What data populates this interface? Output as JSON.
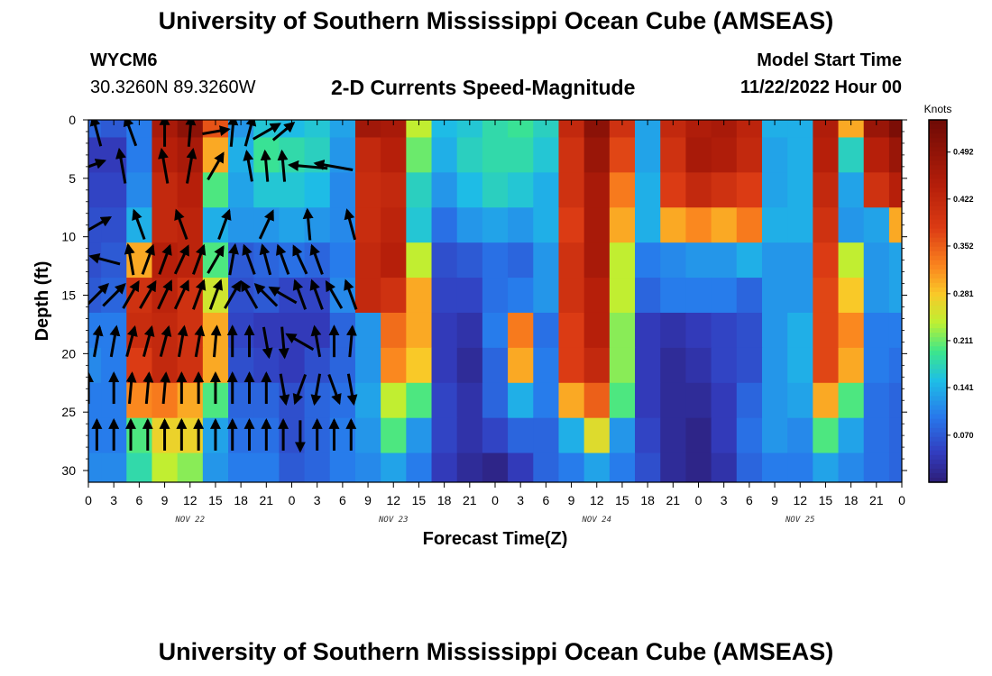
{
  "page": {
    "title": "University of Southern Mississippi Ocean Cube (AMSEAS)",
    "title_repeat": "University of Southern Mississippi Ocean Cube (AMSEAS)",
    "station_id": "WYCM6",
    "station_coords": "30.3260N  89.3260W",
    "plot_title": "2-D Currents Speed-Magnitude",
    "model_start_label": "Model Start Time",
    "model_start_value": "11/22/2022 Hour 00"
  },
  "chart_data": {
    "type": "heatmap",
    "title": "2-D Currents Speed-Magnitude",
    "xlabel": "Forecast Time(Z)",
    "ylabel": "Depth (ft)",
    "x_range_hours": [
      0,
      96
    ],
    "x_tick_labels": [
      "0",
      "3",
      "6",
      "9",
      "12",
      "15",
      "18",
      "21",
      "0",
      "3",
      "6",
      "9",
      "12",
      "15",
      "18",
      "21",
      "0",
      "3",
      "6",
      "9",
      "12",
      "15",
      "18",
      "21",
      "0",
      "3",
      "6",
      "9",
      "12",
      "15",
      "18",
      "21",
      "0"
    ],
    "day_labels": [
      "NOV 22",
      "NOV 23",
      "NOV 24",
      "NOV 25"
    ],
    "y_range_ft": [
      0,
      31
    ],
    "y_ticks": [
      0,
      5,
      10,
      15,
      20,
      25,
      30
    ],
    "y_tick_labels": [
      "0",
      "5",
      "10",
      "15",
      "20",
      "25",
      "30"
    ],
    "colorbar": {
      "label": "Knots",
      "range": [
        0,
        0.54
      ],
      "ticks": [
        0.07,
        0.141,
        0.211,
        0.281,
        0.352,
        0.422,
        0.492
      ],
      "tick_labels": [
        "0.070",
        "0.141",
        "0.211",
        "0.281",
        "0.352",
        "0.422",
        "0.492"
      ]
    },
    "speed_grid": {
      "units": "knots",
      "x_hours": [
        0,
        3,
        6,
        9,
        12,
        15,
        18,
        21,
        24,
        27,
        30,
        33,
        36,
        39,
        42,
        45,
        48,
        51,
        54,
        57,
        60,
        63,
        66,
        69,
        72,
        75,
        78,
        81,
        84,
        87,
        90,
        93,
        96
      ],
      "depths_ft": [
        0,
        3,
        6,
        9,
        12,
        15,
        18,
        21,
        24,
        27,
        30
      ],
      "values": [
        [
          0.08,
          0.07,
          0.1,
          0.46,
          0.5,
          0.36,
          0.12,
          0.16,
          0.15,
          0.16,
          0.13,
          0.47,
          0.46,
          0.24,
          0.15,
          0.16,
          0.18,
          0.19,
          0.17,
          0.42,
          0.5,
          0.4,
          0.13,
          0.42,
          0.45,
          0.46,
          0.43,
          0.14,
          0.14,
          0.45,
          0.3,
          0.48,
          0.52
        ],
        [
          0.04,
          0.04,
          0.1,
          0.44,
          0.46,
          0.3,
          0.14,
          0.19,
          0.18,
          0.17,
          0.12,
          0.42,
          0.44,
          0.21,
          0.14,
          0.17,
          0.18,
          0.18,
          0.16,
          0.4,
          0.48,
          0.37,
          0.13,
          0.4,
          0.46,
          0.45,
          0.42,
          0.13,
          0.14,
          0.44,
          0.17,
          0.44,
          0.48
        ],
        [
          0.05,
          0.05,
          0.11,
          0.42,
          0.44,
          0.2,
          0.13,
          0.16,
          0.16,
          0.15,
          0.11,
          0.41,
          0.42,
          0.17,
          0.12,
          0.15,
          0.17,
          0.16,
          0.14,
          0.4,
          0.46,
          0.33,
          0.14,
          0.38,
          0.42,
          0.4,
          0.38,
          0.13,
          0.14,
          0.42,
          0.13,
          0.4,
          0.44
        ],
        [
          0.06,
          0.06,
          0.14,
          0.42,
          0.43,
          0.14,
          0.12,
          0.12,
          0.13,
          0.12,
          0.11,
          0.41,
          0.43,
          0.16,
          0.09,
          0.12,
          0.13,
          0.12,
          0.14,
          0.38,
          0.46,
          0.3,
          0.14,
          0.3,
          0.32,
          0.3,
          0.33,
          0.14,
          0.14,
          0.4,
          0.12,
          0.13,
          0.3
        ],
        [
          0.06,
          0.07,
          0.3,
          0.44,
          0.43,
          0.2,
          0.07,
          0.08,
          0.09,
          0.08,
          0.1,
          0.42,
          0.44,
          0.24,
          0.06,
          0.07,
          0.09,
          0.08,
          0.12,
          0.4,
          0.46,
          0.24,
          0.1,
          0.11,
          0.12,
          0.12,
          0.14,
          0.12,
          0.12,
          0.38,
          0.24,
          0.12,
          0.13
        ],
        [
          0.07,
          0.08,
          0.4,
          0.43,
          0.4,
          0.25,
          0.06,
          0.07,
          0.05,
          0.05,
          0.11,
          0.42,
          0.4,
          0.3,
          0.05,
          0.05,
          0.09,
          0.1,
          0.12,
          0.4,
          0.44,
          0.24,
          0.08,
          0.1,
          0.1,
          0.1,
          0.08,
          0.12,
          0.12,
          0.37,
          0.28,
          0.12,
          0.13
        ],
        [
          0.1,
          0.1,
          0.41,
          0.42,
          0.4,
          0.3,
          0.05,
          0.04,
          0.04,
          0.04,
          0.08,
          0.12,
          0.34,
          0.3,
          0.04,
          0.03,
          0.1,
          0.33,
          0.09,
          0.38,
          0.44,
          0.22,
          0.04,
          0.03,
          0.04,
          0.05,
          0.06,
          0.12,
          0.14,
          0.37,
          0.32,
          0.1,
          0.1
        ],
        [
          0.11,
          0.1,
          0.38,
          0.42,
          0.4,
          0.3,
          0.06,
          0.05,
          0.04,
          0.06,
          0.08,
          0.12,
          0.32,
          0.28,
          0.04,
          0.02,
          0.08,
          0.3,
          0.1,
          0.38,
          0.42,
          0.22,
          0.04,
          0.02,
          0.03,
          0.05,
          0.06,
          0.12,
          0.14,
          0.37,
          0.3,
          0.1,
          0.09
        ],
        [
          0.1,
          0.1,
          0.32,
          0.33,
          0.3,
          0.2,
          0.08,
          0.08,
          0.06,
          0.08,
          0.09,
          0.13,
          0.24,
          0.2,
          0.05,
          0.03,
          0.08,
          0.14,
          0.1,
          0.3,
          0.35,
          0.2,
          0.04,
          0.02,
          0.02,
          0.04,
          0.08,
          0.12,
          0.13,
          0.3,
          0.2,
          0.09,
          0.08
        ],
        [
          0.1,
          0.1,
          0.2,
          0.27,
          0.27,
          0.13,
          0.09,
          0.09,
          0.06,
          0.08,
          0.1,
          0.12,
          0.2,
          0.12,
          0.05,
          0.03,
          0.05,
          0.08,
          0.08,
          0.14,
          0.26,
          0.12,
          0.05,
          0.02,
          0.01,
          0.04,
          0.09,
          0.12,
          0.11,
          0.2,
          0.13,
          0.09,
          0.08
        ],
        [
          0.11,
          0.11,
          0.18,
          0.24,
          0.22,
          0.12,
          0.1,
          0.1,
          0.07,
          0.08,
          0.1,
          0.11,
          0.13,
          0.1,
          0.04,
          0.02,
          0.01,
          0.04,
          0.08,
          0.1,
          0.13,
          0.1,
          0.06,
          0.02,
          0.01,
          0.03,
          0.08,
          0.1,
          0.1,
          0.13,
          0.11,
          0.09,
          0.08
        ]
      ]
    },
    "current_vectors": {
      "units": "degrees toward (0 = up), relative length 0-1",
      "rows": [
        {
          "depth_ft": 1,
          "x_hours": [
            1,
            5,
            9,
            12,
            15,
            17,
            19,
            21,
            23
          ],
          "dir": [
            -15,
            -20,
            0,
            5,
            80,
            5,
            15,
            60,
            50
          ],
          "len": [
            0.8,
            0.8,
            0.8,
            0.8,
            0.7,
            0.8,
            0.8,
            0.8,
            0.7
          ]
        },
        {
          "depth_ft": 4,
          "x_hours": [
            0,
            4,
            9,
            12,
            15,
            19,
            21,
            23,
            26,
            29
          ],
          "dir": [
            70,
            -10,
            -10,
            10,
            30,
            -10,
            -5,
            -5,
            -85,
            -80
          ],
          "len": [
            0.9,
            0.9,
            0.9,
            0.9,
            0.8,
            0.8,
            0.8,
            0.8,
            1.0,
            1.0
          ]
        },
        {
          "depth_ft": 9,
          "x_hours": [
            1,
            6,
            11,
            16,
            21,
            26,
            31
          ],
          "dir": [
            60,
            -20,
            -20,
            20,
            25,
            -5,
            -15
          ],
          "len": [
            0.8,
            0.8,
            0.8,
            0.8,
            0.8,
            0.8,
            0.8
          ]
        },
        {
          "depth_ft": 12,
          "x_hours": [
            2,
            5,
            7,
            9,
            11,
            13,
            15,
            17,
            19,
            21,
            23,
            25,
            27
          ],
          "dir": [
            -75,
            -10,
            20,
            20,
            25,
            20,
            30,
            10,
            -20,
            -15,
            -20,
            -25,
            -20
          ],
          "len": [
            0.8,
            0.8,
            0.8,
            0.8,
            0.8,
            0.8,
            0.8,
            0.8,
            0.8,
            0.8,
            0.8,
            0.8,
            0.8
          ]
        },
        {
          "depth_ft": 15,
          "x_hours": [
            1,
            3,
            5,
            7,
            9,
            11,
            13,
            15,
            17,
            19,
            21,
            23,
            25,
            27,
            29,
            31
          ],
          "dir": [
            45,
            45,
            30,
            30,
            25,
            25,
            20,
            20,
            30,
            -30,
            -45,
            -60,
            -20,
            -20,
            -30,
            -20
          ],
          "len": [
            0.8,
            0.8,
            0.8,
            0.8,
            0.8,
            0.8,
            0.8,
            0.8,
            0.8,
            0.8,
            0.8,
            0.8,
            0.8,
            0.8,
            0.8,
            0.8
          ]
        },
        {
          "depth_ft": 19,
          "x_hours": [
            1,
            3,
            5,
            7,
            9,
            11,
            13,
            15,
            17,
            19,
            21,
            23,
            25,
            27,
            29,
            31
          ],
          "dir": [
            10,
            10,
            15,
            15,
            15,
            10,
            10,
            5,
            0,
            0,
            170,
            175,
            -60,
            -10,
            0,
            5
          ],
          "len": [
            0.8,
            0.8,
            0.8,
            0.8,
            0.8,
            0.8,
            0.8,
            0.8,
            0.8,
            0.8,
            0.8,
            0.8,
            0.8,
            0.8,
            0.8,
            0.8
          ]
        },
        {
          "depth_ft": 23,
          "x_hours": [
            0,
            3,
            5,
            7,
            9,
            11,
            13,
            15,
            17,
            19,
            21,
            23,
            25,
            27,
            29,
            31
          ],
          "dir": [
            0,
            0,
            5,
            5,
            5,
            0,
            0,
            0,
            0,
            0,
            0,
            170,
            -160,
            -170,
            160,
            170
          ],
          "len": [
            0.8,
            0.8,
            0.8,
            0.8,
            0.8,
            0.8,
            0.8,
            0.8,
            0.8,
            0.8,
            0.8,
            0.8,
            0.8,
            0.8,
            0.8,
            0.8
          ]
        },
        {
          "depth_ft": 27,
          "x_hours": [
            1,
            3,
            5,
            7,
            9,
            11,
            13,
            15,
            17,
            19,
            21,
            23,
            25,
            27,
            29,
            31
          ],
          "dir": [
            0,
            0,
            0,
            0,
            0,
            0,
            0,
            0,
            0,
            0,
            0,
            0,
            180,
            0,
            0,
            0
          ],
          "len": [
            0.8,
            0.8,
            0.8,
            0.8,
            0.8,
            0.8,
            0.8,
            0.8,
            0.8,
            0.8,
            0.8,
            0.8,
            0.8,
            0.8,
            0.8,
            0.8
          ]
        }
      ]
    }
  }
}
